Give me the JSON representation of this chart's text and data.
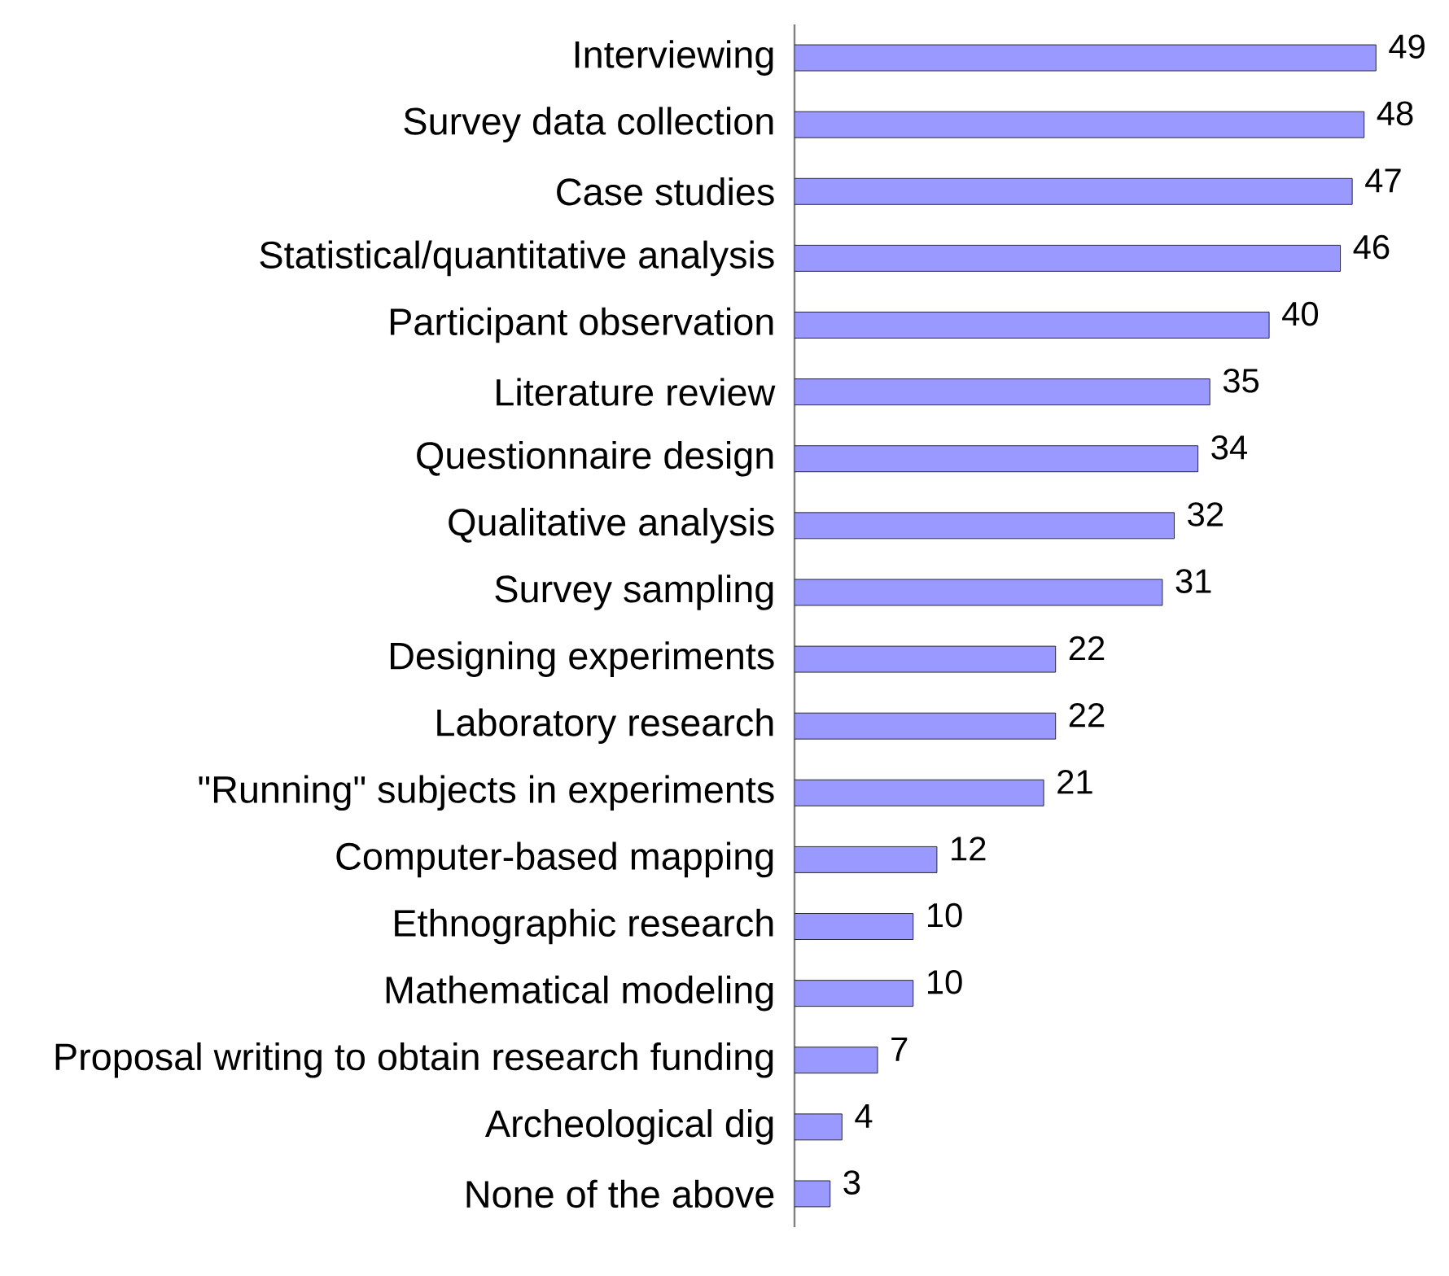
{
  "chart_data": {
    "type": "bar",
    "orientation": "horizontal",
    "data_labels": true,
    "color": "#9999ff",
    "categories": [
      "Interviewing",
      "Survey data collection",
      "Case studies",
      "Statistical/quantitative analysis",
      "Participant observation",
      "Literature review",
      "Questionnaire design",
      "Qualitative analysis",
      "Survey sampling",
      "Designing experiments",
      "Laboratory research",
      "\"Running\" subjects in experiments",
      "Computer-based mapping",
      "Ethnographic research",
      "Mathematical modeling",
      "Proposal writing to obtain research funding",
      "Archeological dig",
      "None of the above"
    ],
    "values": [
      49,
      48,
      47,
      46,
      40,
      35,
      34,
      32,
      31,
      22,
      22,
      21,
      12,
      10,
      10,
      7,
      4,
      3
    ]
  }
}
